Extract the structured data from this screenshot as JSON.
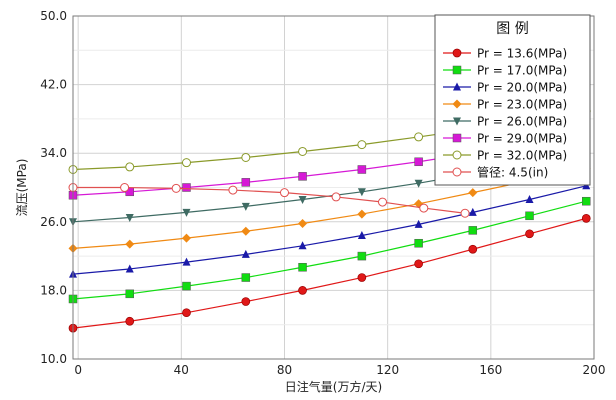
{
  "chart_data": {
    "type": "line",
    "xlabel": "日注气量(万方/天)",
    "ylabel": "流压(MPa)",
    "xlim": [
      -2,
      200
    ],
    "ylim": [
      10.0,
      50.0
    ],
    "x_ticks": [
      0,
      40,
      80,
      120,
      160,
      200
    ],
    "y_ticks": [
      10.0,
      18.0,
      26.0,
      34.0,
      42.0,
      50.0
    ],
    "x_tick_labels": [
      "0",
      "40",
      "80",
      "120",
      "160",
      "200"
    ],
    "y_tick_labels": [
      "10.0",
      "18.0",
      "26.0",
      "34.0",
      "42.0",
      "50.0"
    ],
    "grid": true,
    "legend": {
      "title": "图  例",
      "placement": "top-right"
    },
    "x": [
      -2,
      20,
      42,
      65,
      87,
      110,
      132,
      153,
      175,
      197
    ],
    "series": [
      {
        "name": "Pr = 13.6(MPa)",
        "color": "#e01818",
        "marker": "circle",
        "values": [
          13.6,
          14.4,
          15.4,
          16.7,
          18.0,
          19.5,
          21.1,
          22.8,
          24.6,
          26.4
        ]
      },
      {
        "name": "Pr = 17.0(MPa)",
        "color": "#11dd11",
        "marker": "square",
        "values": [
          17.0,
          17.6,
          18.5,
          19.5,
          20.7,
          22.0,
          23.5,
          25.0,
          26.7,
          28.4
        ]
      },
      {
        "name": "Pr = 20.0(MPa)",
        "color": "#1a1aa8",
        "marker": "triangle",
        "values": [
          19.9,
          20.5,
          21.3,
          22.2,
          23.2,
          24.4,
          25.7,
          27.1,
          28.6,
          30.2
        ]
      },
      {
        "name": "Pr = 23.0(MPa)",
        "color": "#f08a14",
        "marker": "diamond",
        "values": [
          22.9,
          23.4,
          24.1,
          24.9,
          25.8,
          26.9,
          28.1,
          29.4,
          30.8,
          32.2
        ]
      },
      {
        "name": "Pr = 26.0(MPa)",
        "color": "#3f6b63",
        "marker": "triangle-down",
        "values": [
          26.0,
          26.5,
          27.1,
          27.8,
          28.6,
          29.5,
          30.5,
          31.6,
          32.8,
          34.1
        ]
      },
      {
        "name": "Pr = 29.0(MPa)",
        "color": "#d619d6",
        "marker": "square",
        "values": [
          29.1,
          29.5,
          30.0,
          30.6,
          31.3,
          32.1,
          33.0,
          34.0,
          35.1,
          36.2
        ]
      },
      {
        "name": "Pr = 32.0(MPa)",
        "color": "#8a9a2a",
        "marker": "circle-open",
        "values": [
          32.1,
          32.4,
          32.9,
          33.5,
          34.2,
          35.0,
          35.9,
          36.8,
          37.8,
          38.9
        ]
      }
    ],
    "limit_curve": {
      "name": "管径:  4.5(in)",
      "color": "#e05050",
      "marker": "circle-open",
      "x": [
        -2,
        18,
        38,
        60,
        80,
        100,
        118,
        134,
        150
      ],
      "values": [
        30.0,
        30.0,
        29.9,
        29.7,
        29.4,
        28.9,
        28.3,
        27.6,
        27.0
      ]
    }
  }
}
